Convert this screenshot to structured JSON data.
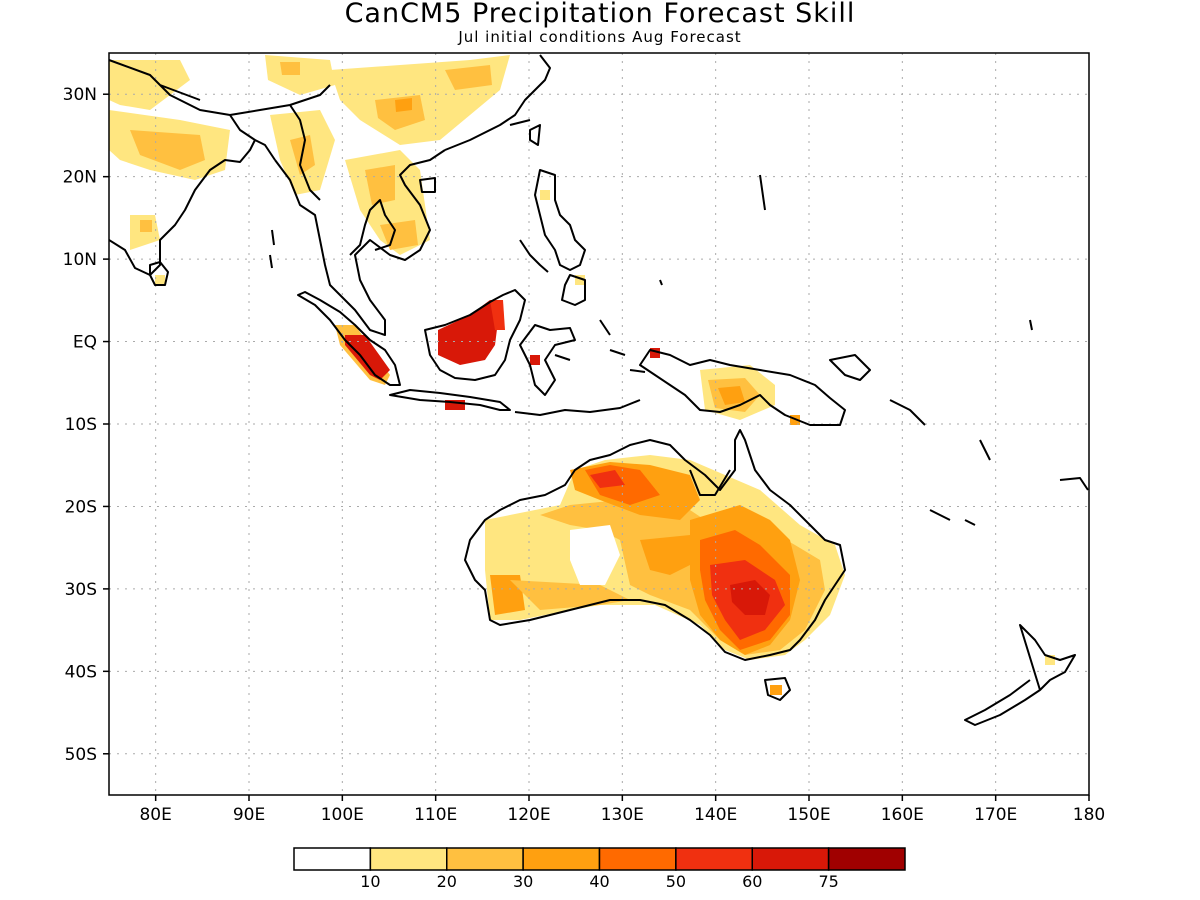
{
  "title": "CanCM5 Precipitation Forecast Skill",
  "subtitle": "Jul initial conditions   Aug Forecast",
  "map": {
    "lat_ticks": [
      "30N",
      "20N",
      "10N",
      "EQ",
      "10S",
      "20S",
      "30S",
      "40S",
      "50S"
    ],
    "lon_ticks": [
      "80E",
      "90E",
      "100E",
      "110E",
      "120E",
      "130E",
      "140E",
      "150E",
      "160E",
      "170E",
      "180"
    ],
    "lon_range": [
      75,
      180
    ],
    "lat_range": [
      -55,
      35
    ],
    "grid": true
  },
  "colorbar": {
    "labels": [
      "10",
      "20",
      "30",
      "40",
      "50",
      "60",
      "75"
    ],
    "colors": [
      "#ffffff",
      "#ffe680",
      "#ffc040",
      "#ffa010",
      "#ff6a00",
      "#f03010",
      "#d81808",
      "#a00000"
    ]
  },
  "regions": [
    {
      "name": "northern-australia-skill",
      "colors": [
        "#ff6a00",
        "#f03010"
      ]
    },
    {
      "name": "southeast-australia-skill",
      "colors": [
        "#f03010",
        "#d81808"
      ]
    },
    {
      "name": "borneo-skill",
      "colors": [
        "#d81808"
      ]
    },
    {
      "name": "sumatra-skill",
      "colors": [
        "#d81808"
      ]
    },
    {
      "name": "new-guinea-skill",
      "colors": [
        "#ffc040",
        "#ffa010"
      ]
    },
    {
      "name": "south-china-skill",
      "colors": [
        "#ffe680",
        "#ffc040"
      ]
    }
  ]
}
